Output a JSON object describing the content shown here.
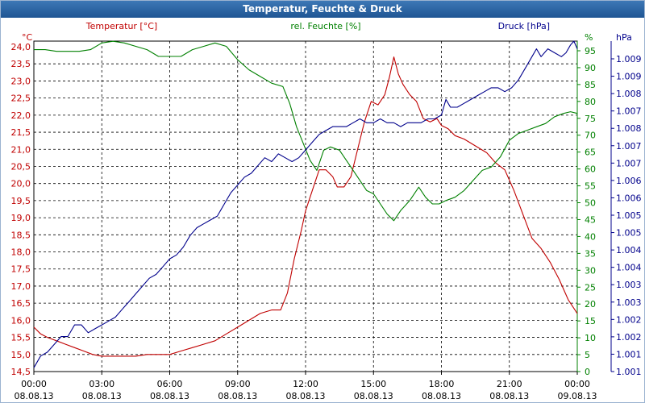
{
  "window": {
    "title": "Temperatur, Feuchte & Druck"
  },
  "chart_data": {
    "type": "line",
    "title": "Temperatur, Feuchte & Druck",
    "x": [
      "00:00",
      "03:00",
      "06:00",
      "09:00",
      "12:00",
      "15:00",
      "18:00",
      "21:00",
      "00:00"
    ],
    "x_dates": [
      "08.08.13",
      "08.08.13",
      "08.08.13",
      "08.08.13",
      "08.08.13",
      "08.08.13",
      "08.08.13",
      "08.08.13",
      "09.08.13"
    ],
    "grid": true,
    "axes": {
      "left": {
        "label": "Temperatur [°C]",
        "unit": "°C",
        "color": "#c00000",
        "ylim": [
          14.5,
          24.0
        ],
        "ticks": [
          "24,0",
          "23,5",
          "23,0",
          "22,5",
          "22,0",
          "21,5",
          "21,0",
          "20,5",
          "20,0",
          "19,5",
          "19,0",
          "18,5",
          "18,0",
          "17,5",
          "17,0",
          "16,5",
          "16,0",
          "15,5",
          "15,0",
          "14,5"
        ]
      },
      "right1": {
        "label": "rel. Feuchte [%]",
        "unit": "%",
        "color": "#008000",
        "ylim": [
          0,
          100
        ],
        "ticks": [
          "95",
          "90",
          "85",
          "80",
          "75",
          "70",
          "65",
          "60",
          "55",
          "50",
          "45",
          "40",
          "35",
          "30",
          "25",
          "20",
          "15",
          "10",
          "5",
          "0"
        ]
      },
      "right2": {
        "label": "Druck [hPa]",
        "unit": "hPa",
        "color": "#00008b",
        "ylim": [
          1001.0,
          1009.5
        ],
        "ticks": [
          "1.009",
          "1.009",
          "1.008",
          "1.007",
          "1.008",
          "1.007",
          "1.007",
          "1.006",
          "1.006",
          "1.005",
          "1.005",
          "1.004",
          "1.004",
          "1.003",
          "1.003",
          "1.002",
          "1.002",
          "1.001",
          "1.001"
        ]
      }
    },
    "series": [
      {
        "name": "Temperatur [°C]",
        "axis": "left",
        "color": "#c00000",
        "points": [
          [
            0,
            15.8
          ],
          [
            0.3,
            15.6
          ],
          [
            0.6,
            15.5
          ],
          [
            1.0,
            15.4
          ],
          [
            1.4,
            15.3
          ],
          [
            1.8,
            15.2
          ],
          [
            2.2,
            15.1
          ],
          [
            2.6,
            15.0
          ],
          [
            3.0,
            14.95
          ],
          [
            3.5,
            14.95
          ],
          [
            4.0,
            14.95
          ],
          [
            4.5,
            14.95
          ],
          [
            5.0,
            15.0
          ],
          [
            5.5,
            15.0
          ],
          [
            6.0,
            15.0
          ],
          [
            6.5,
            15.1
          ],
          [
            7.0,
            15.2
          ],
          [
            7.5,
            15.3
          ],
          [
            8.0,
            15.4
          ],
          [
            8.5,
            15.6
          ],
          [
            9.0,
            15.8
          ],
          [
            9.5,
            16.0
          ],
          [
            10.0,
            16.2
          ],
          [
            10.5,
            16.3
          ],
          [
            10.9,
            16.3
          ],
          [
            11.2,
            16.8
          ],
          [
            11.5,
            17.8
          ],
          [
            11.8,
            18.6
          ],
          [
            12.0,
            19.2
          ],
          [
            12.3,
            19.8
          ],
          [
            12.6,
            20.4
          ],
          [
            12.9,
            20.4
          ],
          [
            13.2,
            20.2
          ],
          [
            13.4,
            19.9
          ],
          [
            13.7,
            19.9
          ],
          [
            14.0,
            20.2
          ],
          [
            14.3,
            21.0
          ],
          [
            14.6,
            21.8
          ],
          [
            14.9,
            22.4
          ],
          [
            15.2,
            22.3
          ],
          [
            15.5,
            22.6
          ],
          [
            15.7,
            23.1
          ],
          [
            15.9,
            23.7
          ],
          [
            16.1,
            23.2
          ],
          [
            16.3,
            22.9
          ],
          [
            16.6,
            22.6
          ],
          [
            16.9,
            22.4
          ],
          [
            17.2,
            21.9
          ],
          [
            17.5,
            21.8
          ],
          [
            17.8,
            21.9
          ],
          [
            18.0,
            21.7
          ],
          [
            18.3,
            21.6
          ],
          [
            18.6,
            21.4
          ],
          [
            19.0,
            21.3
          ],
          [
            19.5,
            21.1
          ],
          [
            20.0,
            20.9
          ],
          [
            20.4,
            20.6
          ],
          [
            20.8,
            20.4
          ],
          [
            21.2,
            19.8
          ],
          [
            21.6,
            19.1
          ],
          [
            22.0,
            18.4
          ],
          [
            22.4,
            18.1
          ],
          [
            22.8,
            17.7
          ],
          [
            23.2,
            17.2
          ],
          [
            23.6,
            16.6
          ],
          [
            24.0,
            16.2
          ]
        ]
      },
      {
        "name": "rel. Feuchte [%]",
        "axis": "right1",
        "color": "#008000",
        "points": [
          [
            0,
            96
          ],
          [
            0.5,
            96
          ],
          [
            1.0,
            95.5
          ],
          [
            1.5,
            95.5
          ],
          [
            2.0,
            95.5
          ],
          [
            2.5,
            96
          ],
          [
            3.0,
            98
          ],
          [
            3.5,
            98.5
          ],
          [
            4.0,
            98
          ],
          [
            4.5,
            97
          ],
          [
            5.0,
            96
          ],
          [
            5.5,
            94
          ],
          [
            6.0,
            94
          ],
          [
            6.5,
            94
          ],
          [
            7.0,
            96
          ],
          [
            7.5,
            97
          ],
          [
            8.0,
            98
          ],
          [
            8.5,
            97
          ],
          [
            9.0,
            93
          ],
          [
            9.5,
            90
          ],
          [
            10.0,
            88
          ],
          [
            10.5,
            86
          ],
          [
            11.0,
            85
          ],
          [
            11.3,
            80
          ],
          [
            11.6,
            73
          ],
          [
            11.9,
            68
          ],
          [
            12.2,
            63
          ],
          [
            12.5,
            60
          ],
          [
            12.8,
            66
          ],
          [
            13.1,
            67
          ],
          [
            13.5,
            66
          ],
          [
            13.9,
            62
          ],
          [
            14.3,
            58
          ],
          [
            14.7,
            54
          ],
          [
            15.0,
            53
          ],
          [
            15.3,
            50
          ],
          [
            15.6,
            47
          ],
          [
            15.9,
            45
          ],
          [
            16.2,
            48
          ],
          [
            16.6,
            51
          ],
          [
            17.0,
            55
          ],
          [
            17.3,
            52
          ],
          [
            17.6,
            50
          ],
          [
            17.9,
            50
          ],
          [
            18.2,
            51
          ],
          [
            18.6,
            52
          ],
          [
            19.0,
            54
          ],
          [
            19.4,
            57
          ],
          [
            19.8,
            60
          ],
          [
            20.2,
            61
          ],
          [
            20.6,
            64
          ],
          [
            21.0,
            69
          ],
          [
            21.4,
            71
          ],
          [
            21.8,
            72
          ],
          [
            22.2,
            73
          ],
          [
            22.6,
            74
          ],
          [
            23.0,
            76
          ],
          [
            23.4,
            77
          ],
          [
            23.7,
            77.5
          ],
          [
            24.0,
            77
          ]
        ]
      },
      {
        "name": "Druck [hPa]",
        "axis": "right2",
        "color": "#00008b",
        "points": [
          [
            0,
            1001.1
          ],
          [
            0.3,
            1001.4
          ],
          [
            0.6,
            1001.5
          ],
          [
            0.9,
            1001.7
          ],
          [
            1.2,
            1001.9
          ],
          [
            1.5,
            1001.9
          ],
          [
            1.8,
            1002.2
          ],
          [
            2.1,
            1002.2
          ],
          [
            2.4,
            1002.0
          ],
          [
            2.7,
            1002.1
          ],
          [
            3.0,
            1002.2
          ],
          [
            3.3,
            1002.3
          ],
          [
            3.6,
            1002.4
          ],
          [
            3.9,
            1002.6
          ],
          [
            4.2,
            1002.8
          ],
          [
            4.5,
            1003.0
          ],
          [
            4.8,
            1003.2
          ],
          [
            5.1,
            1003.4
          ],
          [
            5.4,
            1003.5
          ],
          [
            5.7,
            1003.7
          ],
          [
            6.0,
            1003.9
          ],
          [
            6.3,
            1004.0
          ],
          [
            6.6,
            1004.2
          ],
          [
            6.9,
            1004.5
          ],
          [
            7.2,
            1004.7
          ],
          [
            7.5,
            1004.8
          ],
          [
            7.8,
            1004.9
          ],
          [
            8.1,
            1005.0
          ],
          [
            8.4,
            1005.3
          ],
          [
            8.7,
            1005.6
          ],
          [
            9.0,
            1005.8
          ],
          [
            9.3,
            1006.0
          ],
          [
            9.6,
            1006.1
          ],
          [
            9.9,
            1006.3
          ],
          [
            10.2,
            1006.5
          ],
          [
            10.5,
            1006.4
          ],
          [
            10.8,
            1006.6
          ],
          [
            11.1,
            1006.5
          ],
          [
            11.4,
            1006.4
          ],
          [
            11.7,
            1006.5
          ],
          [
            12.0,
            1006.7
          ],
          [
            12.3,
            1006.9
          ],
          [
            12.6,
            1007.1
          ],
          [
            12.9,
            1007.2
          ],
          [
            13.2,
            1007.3
          ],
          [
            13.5,
            1007.3
          ],
          [
            13.8,
            1007.3
          ],
          [
            14.1,
            1007.4
          ],
          [
            14.4,
            1007.5
          ],
          [
            14.7,
            1007.4
          ],
          [
            15.0,
            1007.4
          ],
          [
            15.3,
            1007.5
          ],
          [
            15.6,
            1007.4
          ],
          [
            15.9,
            1007.4
          ],
          [
            16.2,
            1007.3
          ],
          [
            16.5,
            1007.4
          ],
          [
            16.8,
            1007.4
          ],
          [
            17.1,
            1007.4
          ],
          [
            17.4,
            1007.5
          ],
          [
            17.7,
            1007.5
          ],
          [
            18.0,
            1007.6
          ],
          [
            18.2,
            1008.0
          ],
          [
            18.4,
            1007.8
          ],
          [
            18.7,
            1007.8
          ],
          [
            19.0,
            1007.9
          ],
          [
            19.3,
            1008.0
          ],
          [
            19.6,
            1008.1
          ],
          [
            19.9,
            1008.2
          ],
          [
            20.2,
            1008.3
          ],
          [
            20.5,
            1008.3
          ],
          [
            20.8,
            1008.2
          ],
          [
            21.1,
            1008.3
          ],
          [
            21.4,
            1008.5
          ],
          [
            21.7,
            1008.8
          ],
          [
            22.0,
            1009.1
          ],
          [
            22.2,
            1009.3
          ],
          [
            22.4,
            1009.1
          ],
          [
            22.7,
            1009.3
          ],
          [
            23.0,
            1009.2
          ],
          [
            23.3,
            1009.1
          ],
          [
            23.5,
            1009.2
          ],
          [
            23.7,
            1009.4
          ],
          [
            23.85,
            1009.5
          ],
          [
            24.0,
            1009.3
          ]
        ]
      }
    ]
  }
}
